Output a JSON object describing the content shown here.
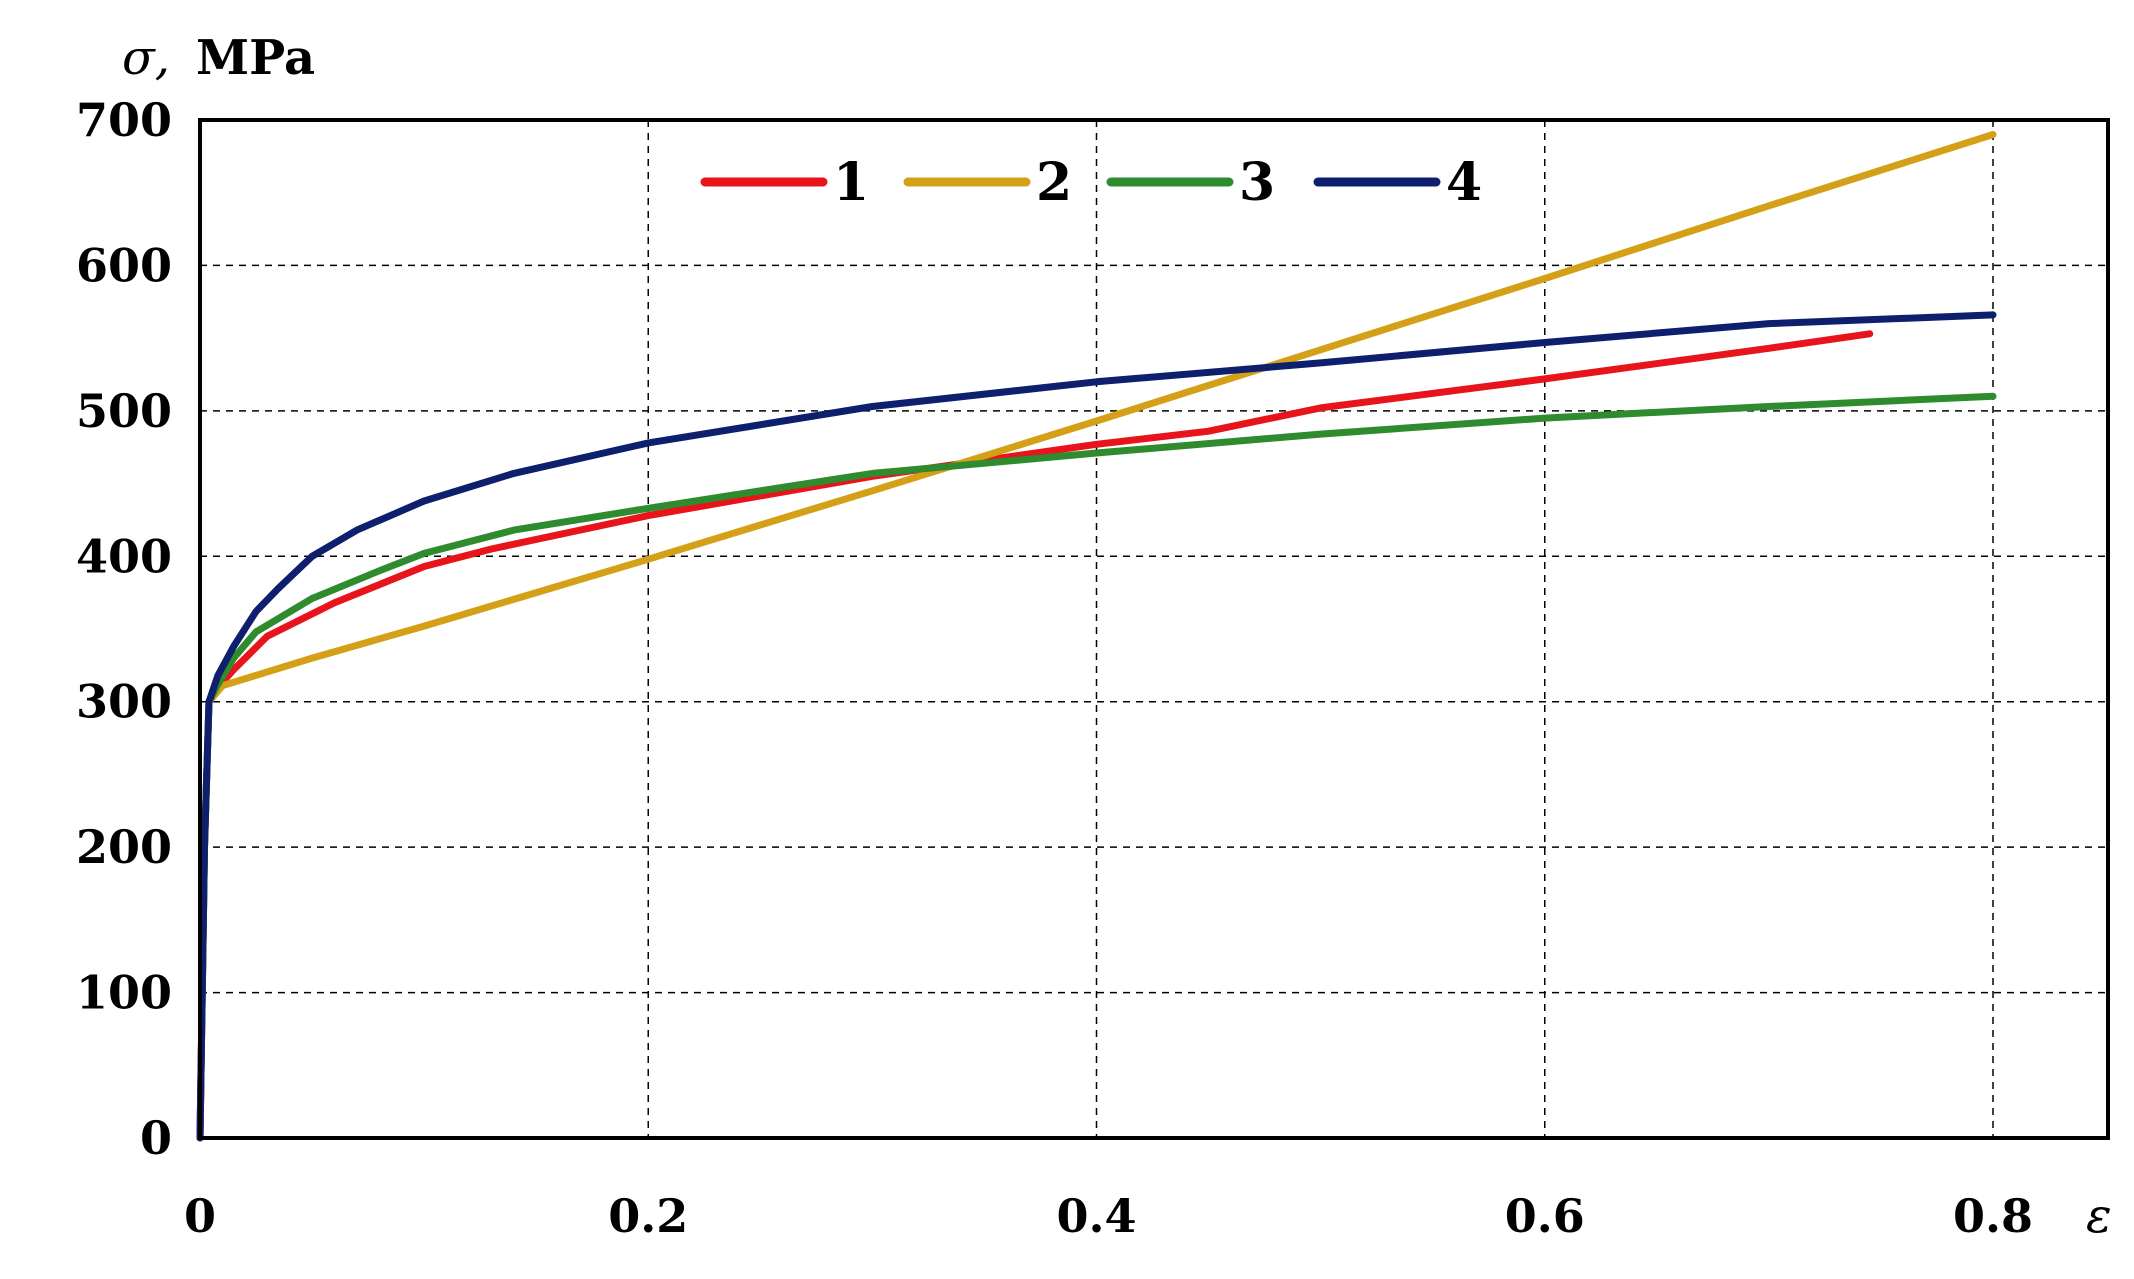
{
  "chart_data": {
    "type": "line",
    "xlabel": "ε",
    "ylabel_symbol": "σ,",
    "ylabel_unit": "MPa",
    "xlim": [
      0,
      0.85
    ],
    "ylim": [
      0,
      700
    ],
    "x_ticks": [
      0,
      0.2,
      0.4,
      0.6,
      0.8
    ],
    "x_tick_labels": [
      "0",
      "0.2",
      "0.4",
      "0.6",
      "0.8"
    ],
    "y_ticks": [
      0,
      100,
      200,
      300,
      400,
      500,
      600,
      700
    ],
    "y_tick_labels": [
      "0",
      "100",
      "200",
      "300",
      "400",
      "500",
      "600",
      "700"
    ],
    "grid": true,
    "legend_position": "top",
    "series": [
      {
        "name": "1",
        "color": "#e8141c",
        "x": [
          0,
          0.002,
          0.004,
          0.008,
          0.015,
          0.03,
          0.06,
          0.1,
          0.13,
          0.2,
          0.3,
          0.4,
          0.45,
          0.5,
          0.6,
          0.7,
          0.745
        ],
        "y": [
          0,
          200,
          300,
          310,
          322,
          345,
          368,
          393,
          405,
          428,
          455,
          477,
          486,
          502,
          522,
          543,
          553
        ]
      },
      {
        "name": "2",
        "color": "#d4a017",
        "x": [
          0,
          0.002,
          0.004,
          0.01,
          0.05,
          0.1,
          0.2,
          0.3,
          0.4,
          0.5,
          0.6,
          0.7,
          0.8
        ],
        "y": [
          0,
          200,
          300,
          311,
          330,
          352,
          398,
          445,
          493,
          542,
          591,
          641,
          690
        ]
      },
      {
        "name": "3",
        "color": "#2e8b2e",
        "x": [
          0,
          0.002,
          0.004,
          0.008,
          0.015,
          0.025,
          0.05,
          0.08,
          0.1,
          0.14,
          0.2,
          0.3,
          0.4,
          0.5,
          0.6,
          0.7,
          0.8
        ],
        "y": [
          0,
          200,
          300,
          312,
          330,
          348,
          371,
          390,
          402,
          418,
          433,
          457,
          471,
          484,
          495,
          503,
          510
        ]
      },
      {
        "name": "4",
        "color": "#0e1f6e",
        "x": [
          0,
          0.002,
          0.004,
          0.008,
          0.015,
          0.025,
          0.035,
          0.05,
          0.07,
          0.1,
          0.14,
          0.2,
          0.3,
          0.4,
          0.5,
          0.6,
          0.7,
          0.8
        ],
        "y": [
          0,
          200,
          300,
          318,
          338,
          362,
          378,
          400,
          418,
          438,
          457,
          478,
          503,
          520,
          533,
          547,
          560,
          566
        ]
      }
    ]
  }
}
